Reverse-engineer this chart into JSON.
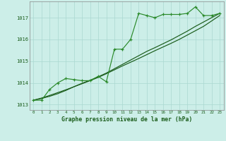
{
  "title": "Graphe pression niveau de la mer (hPa)",
  "background_color": "#cceee8",
  "plot_bg_color": "#cceee8",
  "grid_color": "#aad8d0",
  "line_color": "#1a5c1a",
  "line_color2": "#2a8a2a",
  "xlim": [
    -0.5,
    23.5
  ],
  "ylim": [
    1012.75,
    1017.75
  ],
  "yticks": [
    1013,
    1014,
    1015,
    1016,
    1017
  ],
  "xticks": [
    0,
    1,
    2,
    3,
    4,
    5,
    6,
    7,
    8,
    9,
    10,
    11,
    12,
    13,
    14,
    15,
    16,
    17,
    18,
    19,
    20,
    21,
    22,
    23
  ],
  "hours": [
    0,
    1,
    2,
    3,
    4,
    5,
    6,
    7,
    8,
    9,
    10,
    11,
    12,
    13,
    14,
    15,
    16,
    17,
    18,
    19,
    20,
    21,
    22,
    23
  ],
  "pressure_main": [
    1013.2,
    1013.2,
    1013.7,
    1014.0,
    1014.2,
    1014.15,
    1014.1,
    1014.1,
    1014.3,
    1014.05,
    1015.55,
    1015.55,
    1016.0,
    1017.2,
    1017.1,
    1017.0,
    1017.15,
    1017.15,
    1017.15,
    1017.2,
    1017.5,
    1017.1,
    1017.1,
    1017.2
  ],
  "pressure_trend1": [
    1013.2,
    1013.3,
    1013.42,
    1013.55,
    1013.68,
    1013.82,
    1013.96,
    1014.1,
    1014.25,
    1014.42,
    1014.6,
    1014.78,
    1014.95,
    1015.12,
    1015.3,
    1015.48,
    1015.65,
    1015.82,
    1016.0,
    1016.2,
    1016.4,
    1016.6,
    1016.85,
    1017.1
  ],
  "pressure_trend2": [
    1013.2,
    1013.28,
    1013.38,
    1013.5,
    1013.65,
    1013.82,
    1013.98,
    1014.12,
    1014.28,
    1014.45,
    1014.65,
    1014.85,
    1015.05,
    1015.25,
    1015.45,
    1015.62,
    1015.8,
    1015.98,
    1016.18,
    1016.38,
    1016.6,
    1016.8,
    1017.0,
    1017.2
  ]
}
